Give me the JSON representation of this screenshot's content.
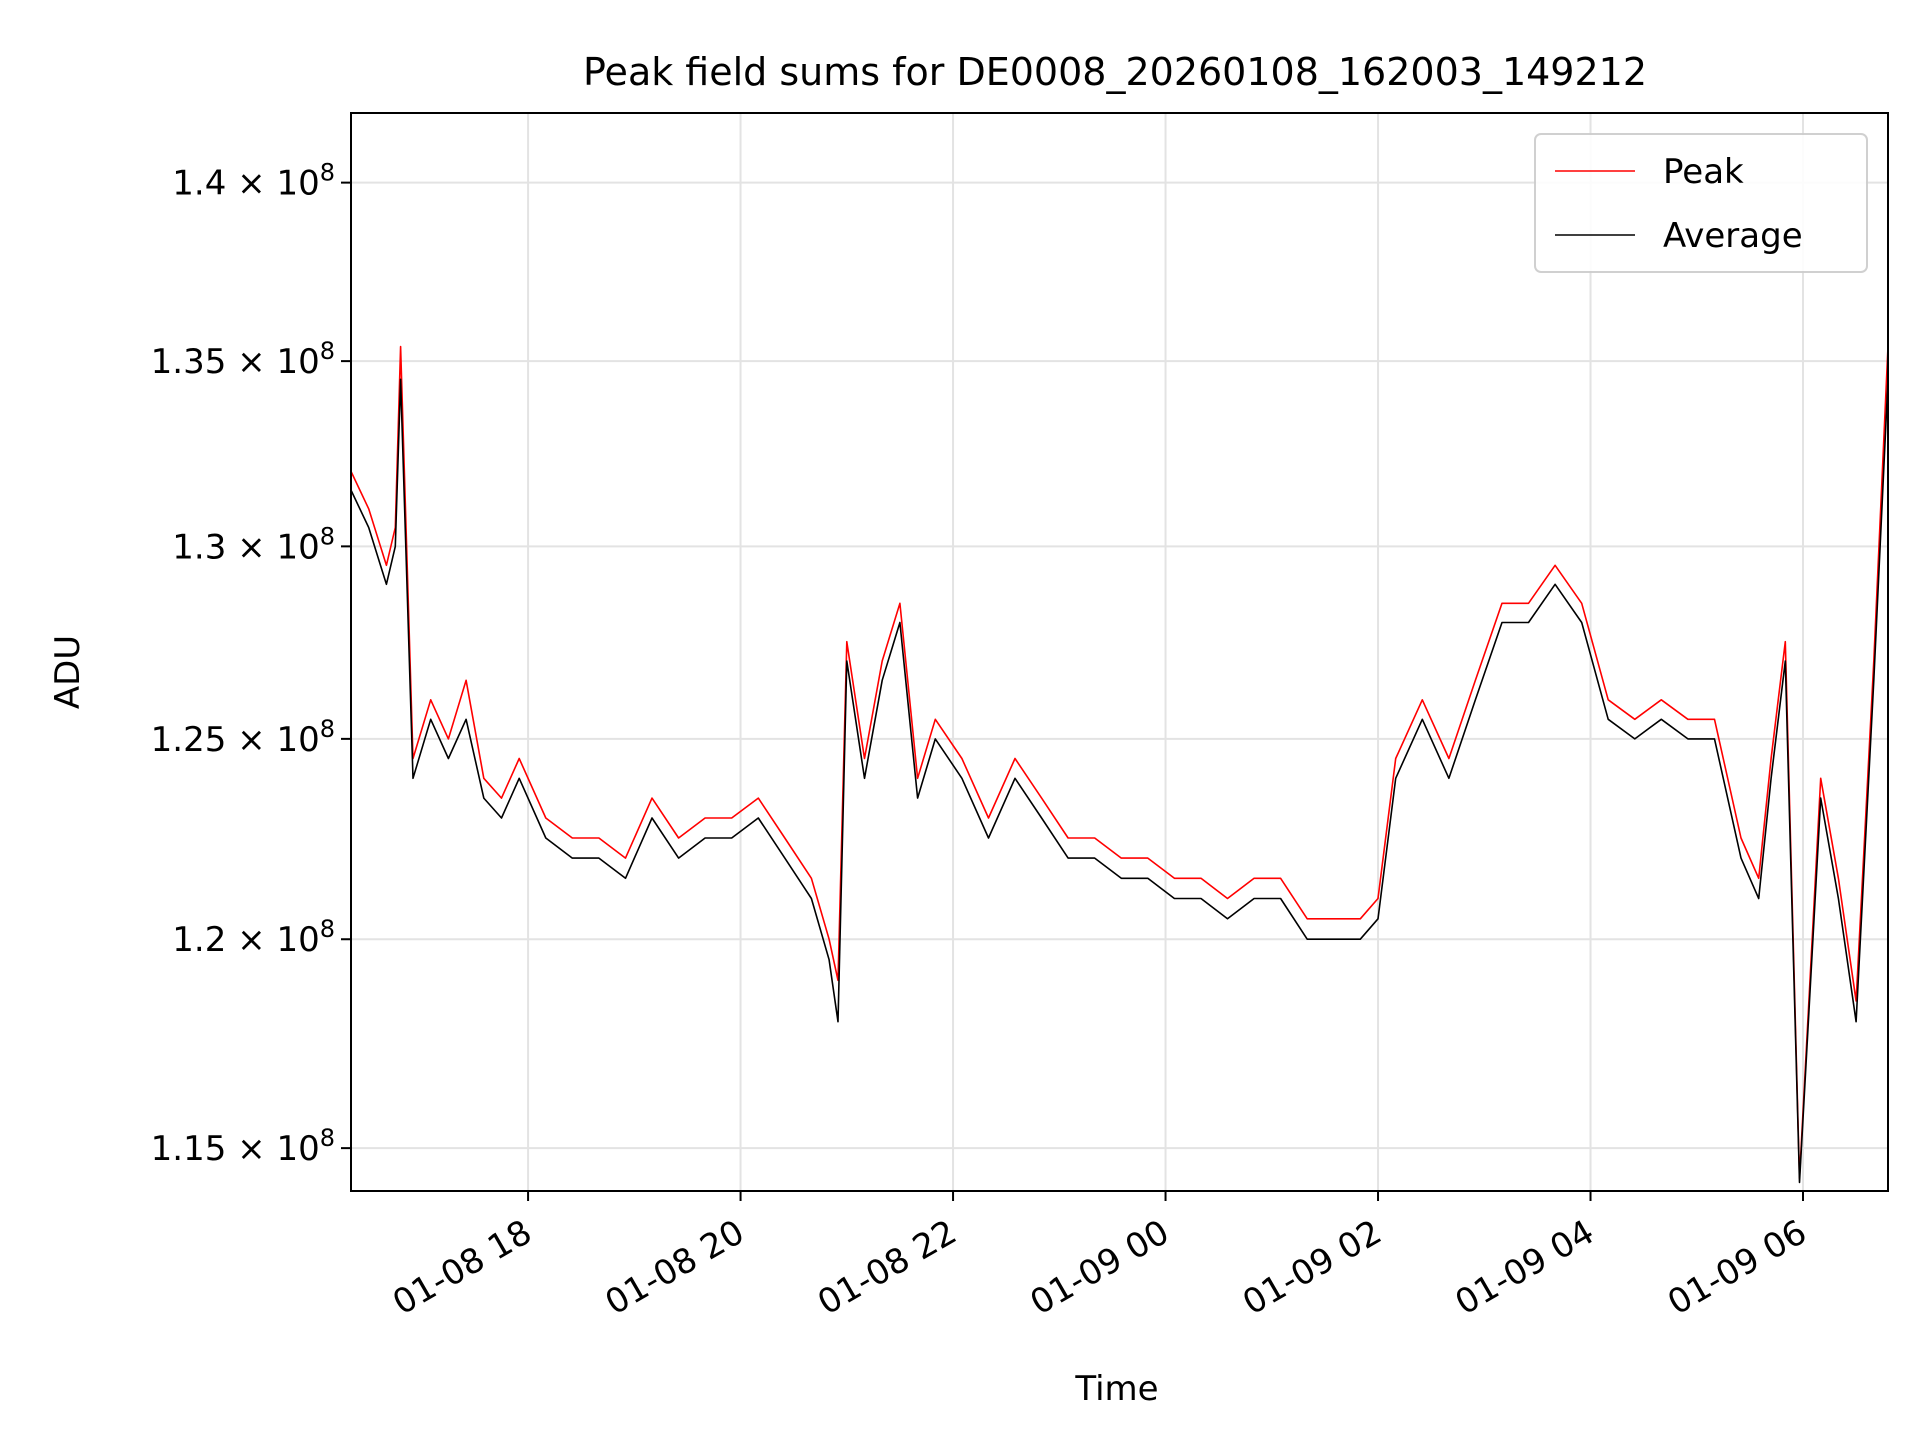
{
  "chart_data": {
    "type": "line",
    "title": "Peak field sums for DE0008_20260108_162003_149212",
    "xlabel": "Time",
    "ylabel": "ADU",
    "x_range": [
      "2026-01-08 16:20",
      "2026-01-09 06:48"
    ],
    "ylim": [
      114000000,
      142000000
    ],
    "y_scale": "log",
    "grid": true,
    "legend_position": "top-right",
    "x_ticks": [
      {
        "value": "2026-01-08 18:00",
        "label": "01-08 18"
      },
      {
        "value": "2026-01-08 20:00",
        "label": "01-08 20"
      },
      {
        "value": "2026-01-08 22:00",
        "label": "01-08 22"
      },
      {
        "value": "2026-01-09 00:00",
        "label": "01-09 00"
      },
      {
        "value": "2026-01-09 02:00",
        "label": "01-09 02"
      },
      {
        "value": "2026-01-09 04:00",
        "label": "01-09 04"
      },
      {
        "value": "2026-01-09 06:00",
        "label": "01-09 06"
      }
    ],
    "y_ticks": [
      {
        "value": 115000000,
        "mantissa": "1.15",
        "exponent": "8"
      },
      {
        "value": 120000000,
        "mantissa": "1.2",
        "exponent": "8"
      },
      {
        "value": 125000000,
        "mantissa": "1.25",
        "exponent": "8"
      },
      {
        "value": 130000000,
        "mantissa": "1.3",
        "exponent": "8"
      },
      {
        "value": 135000000,
        "mantissa": "1.35",
        "exponent": "8"
      },
      {
        "value": 140000000,
        "mantissa": "1.4",
        "exponent": "8"
      }
    ],
    "x": [
      "2026-01-08 16:20",
      "2026-01-08 16:30",
      "2026-01-08 16:40",
      "2026-01-08 16:45",
      "2026-01-08 16:48",
      "2026-01-08 16:55",
      "2026-01-08 17:05",
      "2026-01-08 17:15",
      "2026-01-08 17:25",
      "2026-01-08 17:35",
      "2026-01-08 17:45",
      "2026-01-08 17:55",
      "2026-01-08 18:10",
      "2026-01-08 18:25",
      "2026-01-08 18:40",
      "2026-01-08 18:55",
      "2026-01-08 19:10",
      "2026-01-08 19:25",
      "2026-01-08 19:40",
      "2026-01-08 19:55",
      "2026-01-08 20:10",
      "2026-01-08 20:25",
      "2026-01-08 20:40",
      "2026-01-08 20:50",
      "2026-01-08 20:55",
      "2026-01-08 21:00",
      "2026-01-08 21:10",
      "2026-01-08 21:20",
      "2026-01-08 21:30",
      "2026-01-08 21:40",
      "2026-01-08 21:50",
      "2026-01-08 22:05",
      "2026-01-08 22:20",
      "2026-01-08 22:35",
      "2026-01-08 22:50",
      "2026-01-08 23:05",
      "2026-01-08 23:20",
      "2026-01-08 23:35",
      "2026-01-08 23:50",
      "2026-01-09 00:05",
      "2026-01-09 00:20",
      "2026-01-09 00:35",
      "2026-01-09 00:50",
      "2026-01-09 01:05",
      "2026-01-09 01:20",
      "2026-01-09 01:35",
      "2026-01-09 01:50",
      "2026-01-09 02:00",
      "2026-01-09 02:10",
      "2026-01-09 02:25",
      "2026-01-09 02:40",
      "2026-01-09 02:55",
      "2026-01-09 03:10",
      "2026-01-09 03:25",
      "2026-01-09 03:40",
      "2026-01-09 03:55",
      "2026-01-09 04:10",
      "2026-01-09 04:25",
      "2026-01-09 04:40",
      "2026-01-09 04:55",
      "2026-01-09 05:10",
      "2026-01-09 05:25",
      "2026-01-09 05:35",
      "2026-01-09 05:42",
      "2026-01-09 05:50",
      "2026-01-09 05:58",
      "2026-01-09 06:10",
      "2026-01-09 06:20",
      "2026-01-09 06:30",
      "2026-01-09 06:40",
      "2026-01-09 06:48"
    ],
    "series": [
      {
        "name": "Peak",
        "color": "#ff0000",
        "values": [
          132000000,
          131000000,
          129500000,
          130500000,
          135400000,
          124500000,
          126000000,
          125000000,
          126500000,
          124000000,
          123500000,
          124500000,
          123000000,
          122500000,
          122500000,
          122000000,
          123500000,
          122500000,
          123000000,
          123000000,
          123500000,
          122500000,
          121500000,
          120000000,
          119000000,
          127500000,
          124500000,
          127000000,
          128500000,
          124000000,
          125500000,
          124500000,
          123000000,
          124500000,
          123500000,
          122500000,
          122500000,
          122000000,
          122000000,
          121500000,
          121500000,
          121000000,
          121500000,
          121500000,
          120500000,
          120500000,
          120500000,
          121000000,
          124500000,
          126000000,
          124500000,
          126500000,
          128500000,
          128500000,
          129500000,
          128500000,
          126000000,
          125500000,
          126000000,
          125500000,
          125500000,
          122500000,
          121500000,
          124500000,
          127500000,
          114300000,
          124000000,
          121500000,
          118500000,
          127000000,
          135400000
        ]
      },
      {
        "name": "Average",
        "color": "#000000",
        "values": [
          131500000,
          130500000,
          129000000,
          130000000,
          134500000,
          124000000,
          125500000,
          124500000,
          125500000,
          123500000,
          123000000,
          124000000,
          122500000,
          122000000,
          122000000,
          121500000,
          123000000,
          122000000,
          122500000,
          122500000,
          123000000,
          122000000,
          121000000,
          119500000,
          118000000,
          127000000,
          124000000,
          126500000,
          128000000,
          123500000,
          125000000,
          124000000,
          122500000,
          124000000,
          123000000,
          122000000,
          122000000,
          121500000,
          121500000,
          121000000,
          121000000,
          120500000,
          121000000,
          121000000,
          120000000,
          120000000,
          120000000,
          120500000,
          124000000,
          125500000,
          124000000,
          126000000,
          128000000,
          128000000,
          129000000,
          128000000,
          125500000,
          125000000,
          125500000,
          125000000,
          125000000,
          122000000,
          121000000,
          124000000,
          127000000,
          114200000,
          123500000,
          121000000,
          118000000,
          126500000,
          134500000
        ]
      }
    ]
  }
}
